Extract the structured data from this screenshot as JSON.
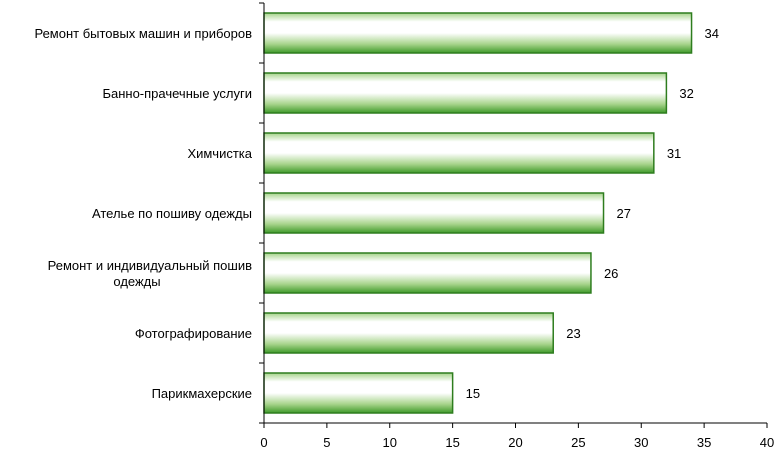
{
  "chart_data": {
    "type": "bar",
    "orientation": "horizontal",
    "categories": [
      "Ремонт бытовых машин и приборов",
      "Банно-прачечные услуги",
      "Химчистка",
      "Ателье по пошиву одежды",
      "Ремонт и индивидуальный пошив одежды",
      "Фотографирование",
      "Парикмахерские"
    ],
    "category_lines": [
      [
        "Ремонт бытовых машин и приборов"
      ],
      [
        "Банно-прачечные услуги"
      ],
      [
        "Химчистка"
      ],
      [
        "Ателье по пошиву одежды"
      ],
      [
        "Ремонт и индивидуальный пошив",
        "одежды"
      ],
      [
        "Фотографирование"
      ],
      [
        "Парикмахерские"
      ]
    ],
    "values": [
      34,
      32,
      31,
      27,
      26,
      23,
      15
    ],
    "data_labels": [
      "34",
      "32",
      "31",
      "27",
      "26",
      "23",
      "15"
    ],
    "xlim": [
      0,
      40
    ],
    "x_ticks": [
      0,
      5,
      10,
      15,
      20,
      25,
      30,
      35,
      40
    ],
    "x_tick_labels": [
      "0",
      "5",
      "10",
      "15",
      "20",
      "25",
      "30",
      "35",
      "40"
    ],
    "title": "",
    "xlabel": "",
    "ylabel": "",
    "grid": false,
    "legend": "none",
    "colors": {
      "bar_edge": "#2e7d1e",
      "bar_light": "#ffffff",
      "bar_mid": "#a6d38a",
      "bar_dark": "#3f9a2a",
      "axis": "#000000"
    }
  }
}
